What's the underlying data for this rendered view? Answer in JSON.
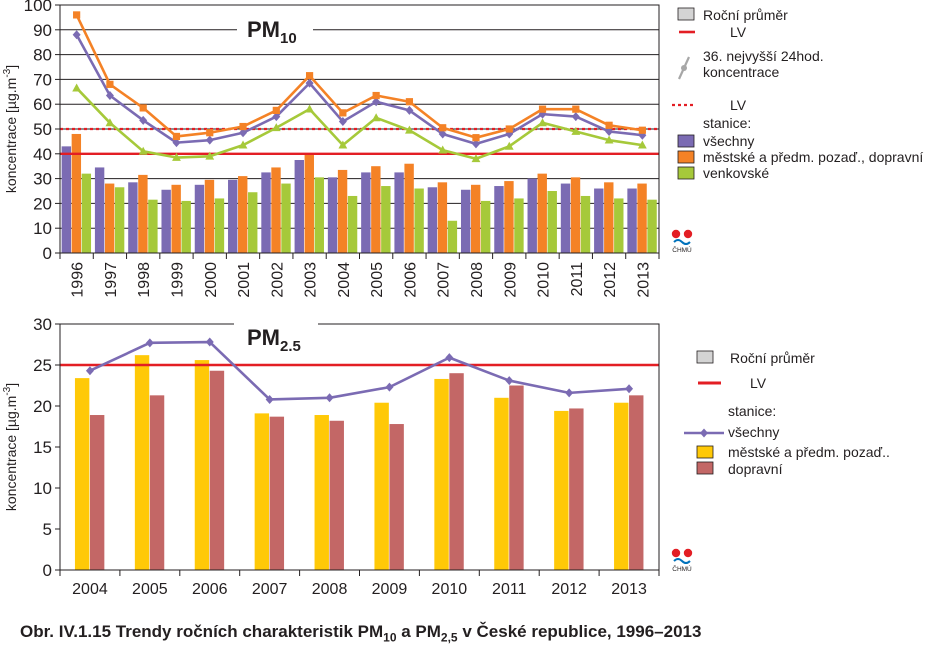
{
  "caption": {
    "prefix": "Obr. IV.1.15  Trendy ročních charakteristik PM",
    "sub1": "10",
    "mid": " a PM",
    "sub2": "2,5",
    "suffix": " v České republice, 1996–2013"
  },
  "logo": {
    "text": "ČHMÚ"
  },
  "colors": {
    "purple": "#7b6bb3",
    "orange": "#f48226",
    "green": "#a6c93a",
    "yellow": "#ffc907",
    "rose": "#c36766",
    "red": "#e31e24",
    "legend_gray": "#d4d4d4",
    "marker_gray": "#a7a7a7"
  },
  "chart_data": [
    {
      "type": "bar",
      "title": "PM",
      "title_sub": "10",
      "ylabel": "koncentrace [µg.m",
      "ylabel_sup": "-3",
      "ylabel_tail": "]",
      "ylim": [
        0,
        100
      ],
      "yticks": [
        0,
        10,
        20,
        30,
        40,
        50,
        60,
        70,
        80,
        90,
        100
      ],
      "grid": true,
      "categories": [
        "1996",
        "1997",
        "1998",
        "1999",
        "2000",
        "2001",
        "2002",
        "2003",
        "2004",
        "2005",
        "2006",
        "2007",
        "2008",
        "2009",
        "2010",
        "2011",
        "2012",
        "2013"
      ],
      "series": [
        {
          "name": "všechny",
          "kind": "bar",
          "color": "#7b6bb3",
          "values": [
            43,
            34.5,
            28.5,
            25.5,
            27.5,
            29.5,
            32.5,
            37.5,
            30.5,
            32.5,
            32.5,
            26.5,
            25.5,
            27,
            30,
            28,
            26,
            26
          ]
        },
        {
          "name": "městské a předm. pozaď., dopravní",
          "kind": "bar",
          "color": "#f48226",
          "values": [
            48,
            28,
            31.5,
            27.5,
            29.5,
            31,
            34.5,
            40,
            33.5,
            35,
            36,
            28.5,
            27.5,
            29,
            32,
            30.5,
            28.5,
            28
          ]
        },
        {
          "name": "venkovské",
          "kind": "bar",
          "color": "#a6c93a",
          "values": [
            32,
            26.5,
            21.5,
            21,
            22,
            24.5,
            28,
            30.5,
            23,
            27,
            26,
            13,
            21,
            22,
            25,
            23,
            22,
            21.5
          ]
        },
        {
          "name": "všechny",
          "kind": "line",
          "color": "#7b6bb3",
          "marker": "diamond",
          "values": [
            88,
            63.5,
            53.5,
            44.5,
            45.5,
            48.5,
            55,
            68.5,
            53,
            61,
            57.5,
            48,
            44,
            48,
            56,
            55,
            49,
            47.5
          ]
        },
        {
          "name": "městské a předm. pozaď., dopravní",
          "kind": "line",
          "color": "#f48226",
          "marker": "square",
          "values": [
            96,
            68,
            58.5,
            47,
            48.5,
            51,
            57.5,
            71.5,
            56.5,
            63.5,
            61,
            50.5,
            46.5,
            50,
            58,
            58,
            51.5,
            49.5
          ]
        },
        {
          "name": "venkovské",
          "kind": "line",
          "color": "#a6c93a",
          "marker": "triangle",
          "values": [
            66.5,
            52.5,
            41,
            38.5,
            39,
            43.5,
            50.5,
            58,
            43.5,
            54.5,
            49.5,
            41.5,
            38,
            43,
            52.5,
            49,
            45.5,
            43.5
          ]
        }
      ],
      "reference_lines": [
        {
          "name": "LV",
          "value": 40,
          "style": "solid",
          "color": "#e31e24"
        },
        {
          "name": "LV",
          "value": 50,
          "style": "dotted",
          "color": "#e31e24"
        }
      ],
      "legend": {
        "annual": "Roční průměr",
        "lv_solid": "LV",
        "marker_text_1": "36. nejvyšší 24hod.",
        "marker_text_2": "koncentrace",
        "lv_dotted": "LV",
        "stations_heading": "stanice:",
        "items": [
          "všechny",
          "městské a předm. pozaď., dopravní",
          "venkovské"
        ]
      }
    },
    {
      "type": "bar",
      "title": "PM",
      "title_sub": "2.5",
      "ylabel": "koncentrace [µg.m",
      "ylabel_sup": "-3",
      "ylabel_tail": "]",
      "ylim": [
        0,
        30
      ],
      "yticks": [
        0,
        5,
        10,
        15,
        20,
        25,
        30
      ],
      "grid": false,
      "categories": [
        "2004",
        "2005",
        "2006",
        "2007",
        "2008",
        "2009",
        "2010",
        "2011",
        "2012",
        "2013"
      ],
      "series": [
        {
          "name": "městské a předm. pozaď..",
          "kind": "bar",
          "color": "#ffc907",
          "values": [
            23.4,
            26.2,
            25.6,
            19.1,
            18.9,
            20.4,
            23.3,
            21,
            19.4,
            20.4
          ]
        },
        {
          "name": "dopravní",
          "kind": "bar",
          "color": "#c36766",
          "values": [
            18.9,
            21.3,
            24.3,
            18.7,
            18.2,
            17.8,
            24,
            22.5,
            19.7,
            21.3
          ]
        },
        {
          "name": "všechny",
          "kind": "line",
          "color": "#7b6bb3",
          "marker": "diamond",
          "values": [
            24.3,
            27.7,
            27.8,
            20.8,
            21,
            22.3,
            25.9,
            23.1,
            21.6,
            22.1
          ]
        }
      ],
      "reference_lines": [
        {
          "name": "LV",
          "value": 25,
          "style": "solid",
          "color": "#e31e24"
        }
      ],
      "legend": {
        "annual": "Roční průměr",
        "lv_solid": "LV",
        "stations_heading": "stanice:",
        "items": [
          "všechny",
          "městské a předm. pozaď..",
          "dopravní"
        ]
      }
    }
  ]
}
